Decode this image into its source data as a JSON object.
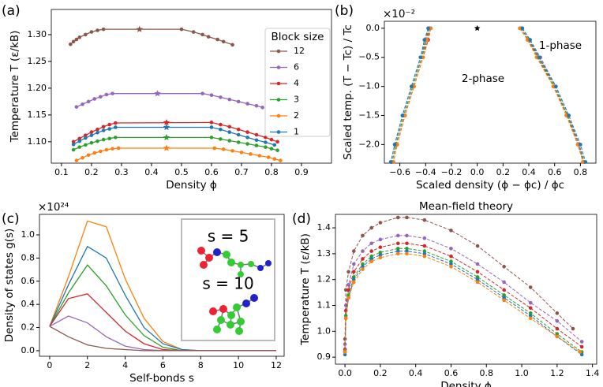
{
  "chart_data": [
    {
      "type": "line",
      "panel_label": "(a)",
      "xlabel": "Density ϕ",
      "ylabel": "Temperature T (ε/kB)",
      "xlim": [
        0.066,
        1.0
      ],
      "ylim": [
        1.06,
        1.347
      ],
      "xticks": [
        0.1,
        0.2,
        0.3,
        0.4,
        0.5,
        0.6,
        0.7,
        0.8,
        0.9
      ],
      "yticks": [
        {
          "value": 1.1,
          "label": "1.10"
        },
        1.15,
        {
          "value": 1.2,
          "label": "1.20"
        },
        1.25,
        {
          "value": 1.3,
          "label": "1.30"
        }
      ],
      "markers": true,
      "legend": "upper right",
      "legend_title": "Block size",
      "series": [
        {
          "name": "12",
          "color": "#8c564b",
          "x": [
            0.13,
            0.14,
            0.15,
            0.16,
            0.18,
            0.2,
            0.22,
            0.24,
            0.5,
            0.54,
            0.57,
            0.59,
            0.62,
            0.64,
            0.67
          ],
          "values": [
            1.282,
            1.287,
            1.291,
            1.295,
            1.3,
            1.305,
            1.308,
            1.31,
            1.31,
            1.305,
            1.3,
            1.296,
            1.291,
            1.287,
            1.281
          ],
          "critical": {
            "x": 0.36,
            "value": 1.31
          }
        },
        {
          "name": "6",
          "color": "#9467bd",
          "x": [
            0.15,
            0.17,
            0.19,
            0.21,
            0.23,
            0.25,
            0.27,
            0.57,
            0.6,
            0.63,
            0.66,
            0.69,
            0.72,
            0.75,
            0.77
          ],
          "values": [
            1.165,
            1.17,
            1.175,
            1.18,
            1.184,
            1.188,
            1.19,
            1.19,
            1.187,
            1.183,
            1.179,
            1.175,
            1.171,
            1.167,
            1.164
          ],
          "critical": {
            "x": 0.42,
            "value": 1.19
          }
        },
        {
          "name": "4",
          "color": "#d62728",
          "x": [
            0.14,
            0.16,
            0.18,
            0.2,
            0.22,
            0.24,
            0.26,
            0.28,
            0.6,
            0.63,
            0.66,
            0.69,
            0.72,
            0.75,
            0.78,
            0.8,
            0.82
          ],
          "values": [
            1.1,
            1.106,
            1.112,
            1.118,
            1.123,
            1.128,
            1.132,
            1.135,
            1.136,
            1.132,
            1.128,
            1.123,
            1.118,
            1.113,
            1.108,
            1.104,
            1.1
          ],
          "critical": {
            "x": 0.45,
            "value": 1.136
          }
        },
        {
          "name": "3",
          "color": "#2ca02c",
          "x": [
            0.14,
            0.16,
            0.18,
            0.2,
            0.22,
            0.24,
            0.26,
            0.28,
            0.6,
            0.63,
            0.66,
            0.69,
            0.72,
            0.75,
            0.78,
            0.8,
            0.82
          ],
          "values": [
            1.085,
            1.09,
            1.094,
            1.098,
            1.101,
            1.104,
            1.106,
            1.108,
            1.108,
            1.105,
            1.102,
            1.099,
            1.096,
            1.093,
            1.09,
            1.087,
            1.084
          ],
          "critical": {
            "x": 0.45,
            "value": 1.108
          }
        },
        {
          "name": "2",
          "color": "#ff7f0e",
          "x": [
            0.15,
            0.17,
            0.19,
            0.21,
            0.23,
            0.25,
            0.27,
            0.29,
            0.61,
            0.64,
            0.67,
            0.7,
            0.73,
            0.76,
            0.79,
            0.81,
            0.83
          ],
          "values": [
            1.065,
            1.07,
            1.075,
            1.079,
            1.082,
            1.085,
            1.087,
            1.088,
            1.088,
            1.086,
            1.083,
            1.08,
            1.077,
            1.074,
            1.071,
            1.068,
            1.065
          ],
          "critical": {
            "x": 0.45,
            "value": 1.088
          }
        },
        {
          "name": "1",
          "color": "#1f77b4",
          "x": [
            0.14,
            0.16,
            0.18,
            0.2,
            0.22,
            0.24,
            0.26,
            0.28,
            0.6,
            0.63,
            0.66,
            0.69,
            0.72,
            0.75,
            0.78,
            0.81
          ],
          "values": [
            1.095,
            1.101,
            1.107,
            1.112,
            1.117,
            1.121,
            1.124,
            1.127,
            1.127,
            1.123,
            1.118,
            1.113,
            1.108,
            1.103,
            1.099,
            1.094
          ],
          "critical": {
            "x": 0.45,
            "value": 1.127
          }
        }
      ]
    },
    {
      "type": "line",
      "panel_label": "(b)",
      "xlabel": "Scaled density (ϕ − ϕc) / ϕc",
      "ylabel": "Scaled temp. (T − Tc) / Tc",
      "offset_label": "×10⁻²",
      "xlim": [
        -0.72,
        0.92
      ],
      "ylim": [
        -2.32,
        0.12
      ],
      "xticks": [
        {
          "value": -0.6,
          "label": "−0.6"
        },
        {
          "value": -0.4,
          "label": "−0.4"
        },
        {
          "value": -0.2,
          "label": "−0.2"
        },
        {
          "value": 0,
          "label": "0.0"
        },
        0.2,
        0.4,
        0.6,
        0.8
      ],
      "yticks": [
        {
          "value": 0,
          "label": "0.0"
        },
        {
          "value": -0.5,
          "label": "−0.5"
        },
        {
          "value": -1,
          "label": "−1.0"
        },
        {
          "value": -1.5,
          "label": "−1.5"
        },
        {
          "value": -2,
          "label": "−2.0"
        }
      ],
      "markers": true,
      "line_style": "dashed",
      "annotations": [
        "1-phase",
        "2-phase"
      ],
      "critical_point": {
        "x": 0,
        "value": 0
      },
      "series": [
        {
          "color": "#8c564b",
          "x": [
            -0.37,
            -0.39,
            -0.43,
            -0.5,
            -0.57,
            -0.63,
            -0.66,
            null,
            0.34,
            0.4,
            0.48,
            0.6,
            0.7,
            0.79,
            0.83
          ],
          "values": [
            0,
            -0.2,
            -0.5,
            -1.0,
            -1.5,
            -2.0,
            -2.3,
            null,
            0,
            -0.2,
            -0.5,
            -1.0,
            -1.5,
            -2.0,
            -2.3
          ]
        },
        {
          "color": "#9467bd",
          "x": [
            -0.38,
            -0.4,
            -0.44,
            -0.51,
            -0.58,
            -0.64,
            -0.67,
            null,
            0.35,
            0.41,
            0.49,
            0.61,
            0.71,
            0.79,
            0.82
          ],
          "values": [
            0,
            -0.2,
            -0.5,
            -1.0,
            -1.5,
            -2.0,
            -2.3,
            null,
            0,
            -0.2,
            -0.5,
            -1.0,
            -1.5,
            -2.0,
            -2.3
          ]
        },
        {
          "color": "#d62728",
          "x": [
            -0.36,
            -0.38,
            -0.42,
            -0.49,
            -0.56,
            -0.62,
            -0.65,
            null,
            0.33,
            0.39,
            0.47,
            0.59,
            0.7,
            0.78,
            0.82
          ],
          "values": [
            0,
            -0.2,
            -0.5,
            -1.0,
            -1.5,
            -2.0,
            -2.3,
            null,
            0,
            -0.2,
            -0.5,
            -1.0,
            -1.5,
            -2.0,
            -2.3
          ]
        },
        {
          "color": "#2ca02c",
          "x": [
            -0.37,
            -0.4,
            -0.43,
            -0.5,
            -0.57,
            -0.63,
            -0.66,
            null,
            0.34,
            0.4,
            0.47,
            0.6,
            0.7,
            0.78,
            0.83
          ],
          "values": [
            0,
            -0.2,
            -0.5,
            -1.0,
            -1.5,
            -2.0,
            -2.3,
            null,
            0,
            -0.2,
            -0.5,
            -1.0,
            -1.5,
            -2.0,
            -2.3
          ]
        },
        {
          "color": "#ff7f0e",
          "x": [
            -0.36,
            -0.39,
            -0.42,
            -0.49,
            -0.56,
            -0.62,
            -0.65,
            null,
            0.33,
            0.39,
            0.46,
            0.59,
            0.69,
            0.78,
            0.82
          ],
          "values": [
            0,
            -0.2,
            -0.5,
            -1.0,
            -1.5,
            -2.0,
            -2.3,
            null,
            0,
            -0.2,
            -0.5,
            -1.0,
            -1.5,
            -2.0,
            -2.3
          ]
        },
        {
          "color": "#1f77b4",
          "x": [
            -0.38,
            -0.41,
            -0.44,
            -0.51,
            -0.58,
            -0.64,
            -0.67,
            null,
            0.35,
            0.41,
            0.48,
            0.61,
            0.71,
            0.8,
            0.84
          ],
          "values": [
            0,
            -0.2,
            -0.5,
            -1.0,
            -1.5,
            -2.0,
            -2.3,
            null,
            0,
            -0.2,
            -0.5,
            -1.0,
            -1.5,
            -2.0,
            -2.3
          ]
        }
      ]
    },
    {
      "type": "line",
      "panel_label": "(c)",
      "xlabel": "Self-bonds s",
      "ylabel": "Density of states g(s)",
      "offset_label": "×10²⁴",
      "xlim": [
        -0.54,
        12.42
      ],
      "ylim": [
        -0.048,
        1.177
      ],
      "xticks": [
        0,
        2,
        4,
        6,
        8,
        10,
        12
      ],
      "yticks": [
        {
          "value": 0,
          "label": "0.0"
        },
        0.2,
        0.4,
        0.6,
        0.8,
        {
          "value": 1,
          "label": "1.0"
        }
      ],
      "inset_labels": [
        "s = 5",
        "s = 10"
      ],
      "x": [
        0,
        1,
        2,
        3,
        4,
        5,
        6,
        7,
        8,
        9,
        10,
        11,
        12
      ],
      "series": [
        {
          "color": "#ff7f0e",
          "values": [
            0.21,
            0.64,
            1.12,
            1.07,
            0.62,
            0.28,
            0.08,
            0.01,
            0,
            0,
            0,
            0,
            0
          ]
        },
        {
          "color": "#1f77b4",
          "values": [
            0.21,
            0.57,
            0.9,
            0.8,
            0.48,
            0.2,
            0.06,
            0.01,
            0,
            0,
            0,
            0,
            0
          ]
        },
        {
          "color": "#2ca02c",
          "values": [
            0.21,
            0.5,
            0.74,
            0.56,
            0.31,
            0.13,
            0.03,
            0,
            0,
            0,
            0,
            0,
            0
          ]
        },
        {
          "color": "#d62728",
          "values": [
            0.21,
            0.45,
            0.49,
            0.33,
            0.17,
            0.06,
            0.01,
            0,
            0,
            0,
            0,
            0,
            0
          ]
        },
        {
          "color": "#9467bd",
          "values": [
            0.21,
            0.3,
            0.24,
            0.12,
            0.04,
            0.01,
            0,
            0,
            0,
            0,
            0,
            0,
            0
          ]
        },
        {
          "color": "#8c564b",
          "values": [
            0.21,
            0.12,
            0.05,
            0.02,
            0.01,
            0,
            0,
            0,
            0,
            0,
            0,
            0,
            0
          ]
        }
      ]
    },
    {
      "type": "line",
      "panel_label": "(d)",
      "title": "Mean-field theory",
      "xlabel": "Density ϕ",
      "ylabel": "Temperature T (ε/kB)",
      "xlim": [
        -0.054,
        1.424
      ],
      "ylim": [
        0.873,
        1.452
      ],
      "xticks": [
        {
          "value": 0,
          "label": "0.0"
        },
        0.2,
        0.4,
        0.6,
        0.8,
        {
          "value": 1,
          "label": "1.0"
        },
        1.2,
        1.4
      ],
      "yticks": [
        0.9,
        {
          "value": 1,
          "label": "1.0"
        },
        1.1,
        1.2,
        1.3,
        1.4
      ],
      "markers": true,
      "line_style": "dashed",
      "series": [
        {
          "color": "#8c564b",
          "x": [
            0,
            0.005,
            0.02,
            0.05,
            0.1,
            0.15,
            0.2,
            0.3,
            0.35,
            0.45,
            0.6,
            0.75,
            0.9,
            1.05,
            1.2,
            1.29
          ],
          "values": [
            0.97,
            1.16,
            1.23,
            1.31,
            1.37,
            1.4,
            1.42,
            1.44,
            1.44,
            1.43,
            1.39,
            1.33,
            1.25,
            1.17,
            1.07,
            1.01
          ]
        },
        {
          "color": "#9467bd",
          "x": [
            0,
            0.005,
            0.02,
            0.05,
            0.1,
            0.15,
            0.2,
            0.3,
            0.35,
            0.45,
            0.6,
            0.75,
            0.9,
            1.05,
            1.2,
            1.34
          ],
          "values": [
            0.95,
            1.1,
            1.18,
            1.26,
            1.31,
            1.34,
            1.355,
            1.37,
            1.37,
            1.36,
            1.32,
            1.26,
            1.19,
            1.11,
            1.04,
            0.96
          ]
        },
        {
          "color": "#d62728",
          "x": [
            0,
            0.005,
            0.02,
            0.05,
            0.1,
            0.15,
            0.2,
            0.3,
            0.35,
            0.45,
            0.6,
            0.75,
            0.9,
            1.05,
            1.2,
            1.34
          ],
          "values": [
            0.93,
            1.08,
            1.16,
            1.23,
            1.28,
            1.31,
            1.325,
            1.34,
            1.34,
            1.33,
            1.29,
            1.23,
            1.16,
            1.09,
            1.01,
            0.94
          ]
        },
        {
          "color": "#2ca02c",
          "x": [
            0,
            0.005,
            0.02,
            0.05,
            0.1,
            0.15,
            0.2,
            0.3,
            0.35,
            0.45,
            0.6,
            0.75,
            0.9,
            1.05,
            1.2,
            1.34
          ],
          "values": [
            0.92,
            1.06,
            1.14,
            1.21,
            1.26,
            1.29,
            1.305,
            1.32,
            1.32,
            1.31,
            1.27,
            1.21,
            1.14,
            1.07,
            0.99,
            0.92
          ]
        },
        {
          "color": "#1f77b4",
          "x": [
            0,
            0.005,
            0.02,
            0.05,
            0.1,
            0.15,
            0.2,
            0.3,
            0.35,
            0.45,
            0.6,
            0.75,
            0.9,
            1.05,
            1.2,
            1.34
          ],
          "values": [
            0.91,
            1.05,
            1.13,
            1.2,
            1.25,
            1.28,
            1.295,
            1.31,
            1.31,
            1.3,
            1.26,
            1.2,
            1.13,
            1.06,
            0.98,
            0.91
          ]
        },
        {
          "color": "#ff7f0e",
          "x": [
            0,
            0.005,
            0.02,
            0.05,
            0.1,
            0.15,
            0.2,
            0.3,
            0.35,
            0.45,
            0.6,
            0.75,
            0.9,
            1.05,
            1.2,
            1.33
          ],
          "values": [
            0.92,
            1.05,
            1.13,
            1.19,
            1.24,
            1.27,
            1.285,
            1.3,
            1.3,
            1.29,
            1.25,
            1.19,
            1.12,
            1.05,
            0.98,
            0.92
          ]
        }
      ]
    }
  ]
}
